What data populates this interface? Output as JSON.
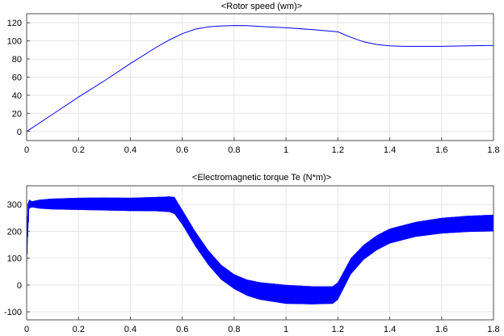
{
  "chart_data": [
    {
      "type": "line",
      "title": "<Rotor speed (wm)>",
      "xlabel": "",
      "ylabel": "",
      "xlim": [
        0,
        1.8
      ],
      "ylim": [
        -10,
        130
      ],
      "xticks": [
        0,
        0.2,
        0.4,
        0.6,
        0.8,
        1,
        1.2,
        1.4,
        1.6,
        1.8
      ],
      "xtick_labels": [
        "0",
        "0.2",
        "0.4",
        "0.6",
        "0.8",
        "1",
        "1.2",
        "1.4",
        "1.6",
        "1.8"
      ],
      "yticks": [
        0,
        20,
        40,
        60,
        80,
        100,
        120
      ],
      "ytick_labels": [
        "0",
        "20",
        "40",
        "60",
        "80",
        "100",
        "120"
      ],
      "grid": true,
      "colors": {
        "line": "#0000ff"
      },
      "series": [
        {
          "x": [
            0,
            0.1,
            0.2,
            0.3,
            0.4,
            0.5,
            0.55,
            0.6,
            0.65,
            0.7,
            0.75,
            0.8,
            0.85,
            0.9,
            1.0,
            1.1,
            1.2,
            1.25,
            1.3,
            1.35,
            1.4,
            1.45,
            1.5,
            1.6,
            1.7,
            1.8
          ],
          "y": [
            0,
            19,
            38,
            56,
            75,
            93,
            101,
            108,
            113,
            115.5,
            116.5,
            117,
            116.8,
            116,
            114.5,
            112.5,
            110,
            104,
            99,
            96,
            94.5,
            94,
            94,
            94,
            94.5,
            95
          ]
        }
      ]
    },
    {
      "type": "line",
      "title": "<Electromagnetic torque Te (N*m)>",
      "xlabel": "",
      "ylabel": "",
      "xlim": [
        0,
        1.8
      ],
      "ylim": [
        -130,
        370
      ],
      "xticks": [
        0,
        0.2,
        0.4,
        0.6,
        0.8,
        1,
        1.2,
        1.4,
        1.6,
        1.8
      ],
      "xtick_labels": [
        "0",
        "0.2",
        "0.4",
        "0.6",
        "0.8",
        "1",
        "1.2",
        "1.4",
        "1.6",
        "1.8"
      ],
      "yticks": [
        -100,
        0,
        100,
        200,
        300
      ],
      "ytick_labels": [
        "-100",
        "0",
        "100",
        "200",
        "300"
      ],
      "grid": true,
      "colors": {
        "band": "#0000ff"
      },
      "series": [
        {
          "x": [
            0,
            0.003,
            0.01,
            0.02,
            0.05,
            0.1,
            0.2,
            0.3,
            0.4,
            0.5,
            0.55,
            0.57,
            0.6,
            0.65,
            0.7,
            0.75,
            0.8,
            0.85,
            0.9,
            1.0,
            1.1,
            1.18,
            1.2,
            1.25,
            1.3,
            1.35,
            1.4,
            1.5,
            1.6,
            1.7,
            1.8
          ],
          "y_upper": [
            40,
            300,
            318,
            312,
            318,
            322,
            325,
            326,
            325,
            328,
            330,
            328,
            280,
            200,
            130,
            75,
            40,
            20,
            10,
            0,
            -5,
            -5,
            10,
            100,
            150,
            185,
            210,
            235,
            250,
            258,
            262
          ],
          "y_lower": [
            0,
            140,
            285,
            290,
            285,
            282,
            280,
            278,
            276,
            275,
            272,
            265,
            225,
            145,
            75,
            20,
            -15,
            -40,
            -55,
            -70,
            -72,
            -70,
            -55,
            40,
            95,
            130,
            155,
            180,
            192,
            198,
            200
          ]
        }
      ]
    }
  ]
}
